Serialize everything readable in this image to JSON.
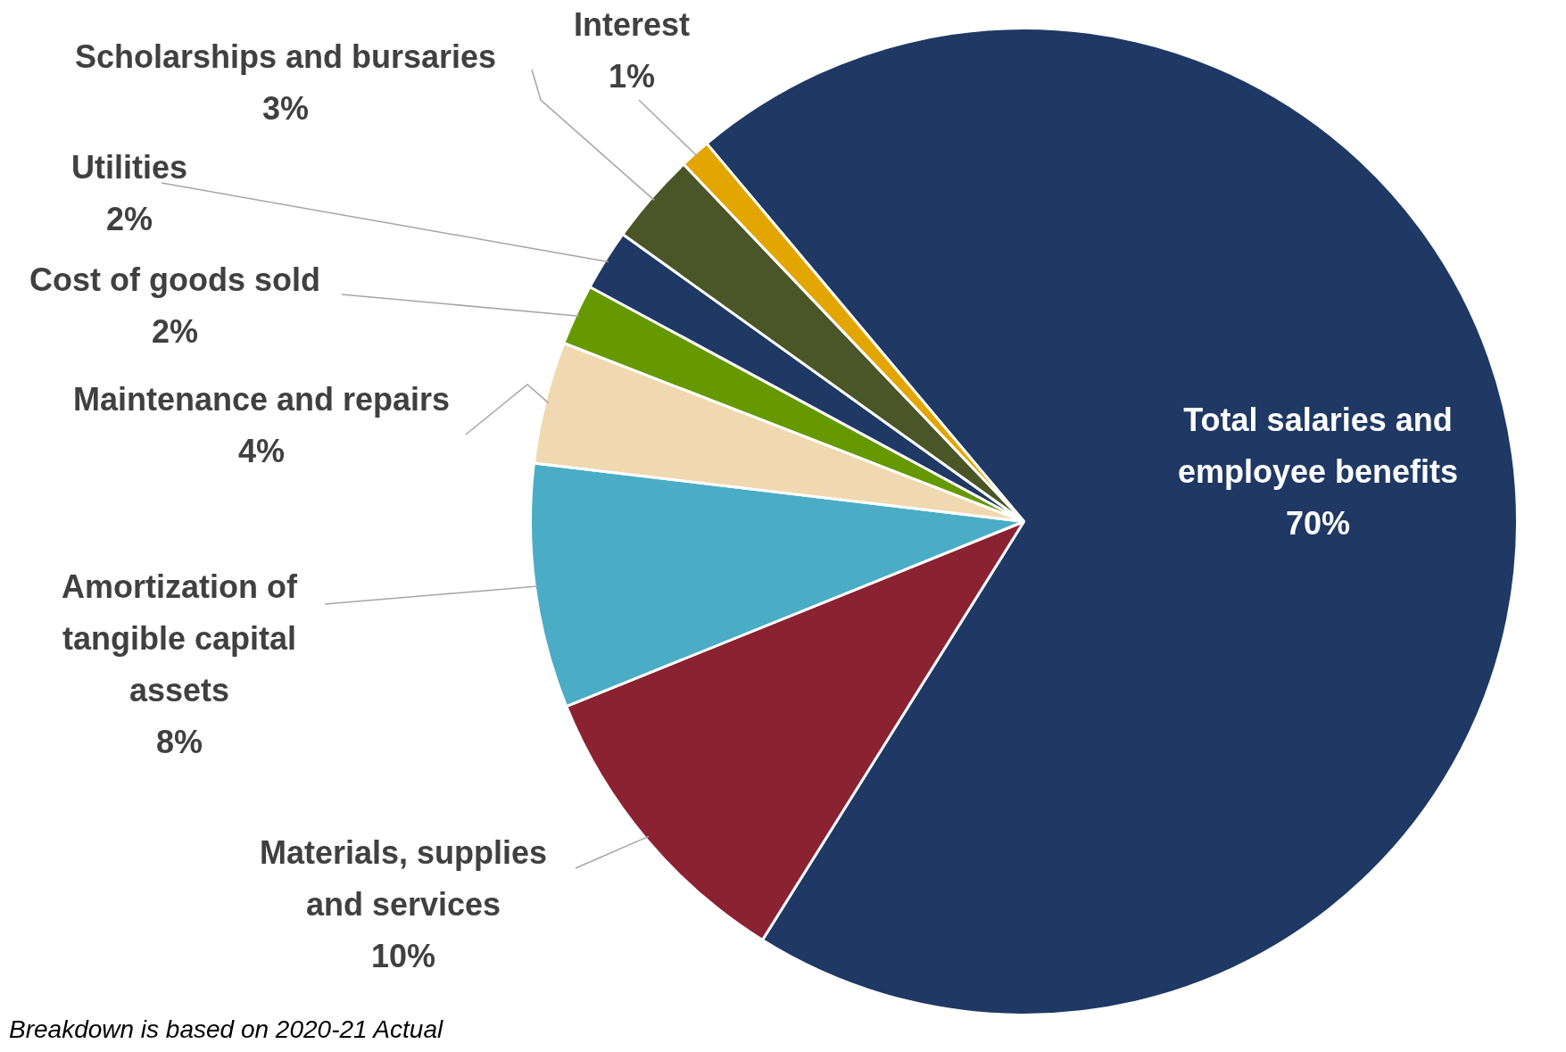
{
  "chart_data": {
    "type": "pie",
    "categories": [
      "Total salaries and employee benefits",
      "Materials, supplies and services",
      "Amortization of tangible capital assets",
      "Maintenance and repairs",
      "Cost of goods sold",
      "Utilities",
      "Scholarships and bursaries",
      "Interest"
    ],
    "values": [
      70,
      10,
      8,
      4,
      2,
      2,
      3,
      1
    ],
    "value_labels": [
      "70%",
      "10%",
      "8%",
      "4%",
      "2%",
      "2%",
      "3%",
      "1%"
    ],
    "colors": [
      "#1f3864",
      "#8b2232",
      "#4bacc6",
      "#f0d9b0",
      "#669900",
      "#1f3864",
      "#4a5628",
      "#e3a600"
    ],
    "annotations": [
      "Breakdown is based on 2020-21 Actual"
    ]
  }
}
